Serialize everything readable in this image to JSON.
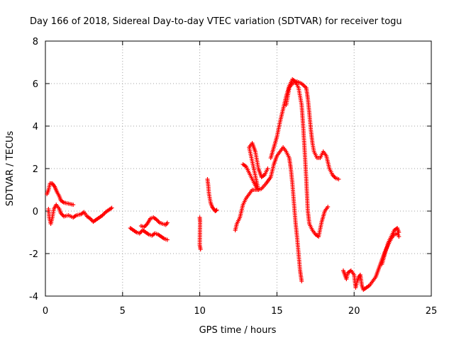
{
  "chart_data": {
    "type": "scatter",
    "title": "Day 166 of 2018, Sidereal Day-to-day VTEC variation (SDTVAR) for receiver togu",
    "xlabel": "GPS time / hours",
    "ylabel": "SDTVAR / TECUs",
    "xlim": [
      0,
      25
    ],
    "ylim": [
      -4,
      8
    ],
    "xticks": [
      0,
      5,
      10,
      15,
      20,
      25
    ],
    "yticks": [
      -4,
      -2,
      0,
      2,
      4,
      6,
      8
    ],
    "grid": true,
    "marker": "+",
    "color": "#ff0000",
    "series": [
      {
        "name": "SDTVAR",
        "segments": [
          [
            [
              0.1,
              0.8
            ],
            [
              0.2,
              1.0
            ],
            [
              0.3,
              1.3
            ],
            [
              0.45,
              1.3
            ],
            [
              0.6,
              1.15
            ],
            [
              0.75,
              0.9
            ],
            [
              0.9,
              0.7
            ],
            [
              1.0,
              0.5
            ],
            [
              1.2,
              0.4
            ],
            [
              1.5,
              0.35
            ],
            [
              1.8,
              0.3
            ]
          ],
          [
            [
              0.2,
              0.1
            ],
            [
              0.25,
              -0.3
            ],
            [
              0.35,
              -0.6
            ],
            [
              0.45,
              -0.3
            ],
            [
              0.55,
              0.1
            ],
            [
              0.7,
              0.3
            ],
            [
              0.9,
              0.1
            ],
            [
              1.0,
              -0.1
            ],
            [
              1.2,
              -0.25
            ],
            [
              1.5,
              -0.2
            ],
            [
              1.8,
              -0.3
            ],
            [
              2.0,
              -0.2
            ],
            [
              2.3,
              -0.15
            ],
            [
              2.5,
              -0.05
            ],
            [
              2.7,
              -0.25
            ],
            [
              2.9,
              -0.35
            ],
            [
              3.1,
              -0.5
            ],
            [
              3.3,
              -0.4
            ],
            [
              3.5,
              -0.3
            ],
            [
              3.7,
              -0.2
            ],
            [
              3.9,
              -0.05
            ],
            [
              4.1,
              0.05
            ],
            [
              4.3,
              0.15
            ]
          ],
          [
            [
              5.5,
              -0.8
            ],
            [
              5.7,
              -0.9
            ],
            [
              5.9,
              -1.0
            ],
            [
              6.1,
              -1.05
            ],
            [
              6.3,
              -0.9
            ],
            [
              6.5,
              -1.0
            ],
            [
              6.7,
              -1.1
            ],
            [
              6.9,
              -1.15
            ],
            [
              7.1,
              -1.05
            ],
            [
              7.3,
              -1.1
            ],
            [
              7.5,
              -1.2
            ],
            [
              7.7,
              -1.3
            ],
            [
              7.9,
              -1.35
            ]
          ],
          [
            [
              6.2,
              -0.7
            ],
            [
              6.4,
              -0.75
            ],
            [
              6.6,
              -0.6
            ],
            [
              6.8,
              -0.35
            ],
            [
              7.0,
              -0.3
            ],
            [
              7.2,
              -0.4
            ],
            [
              7.4,
              -0.55
            ],
            [
              7.6,
              -0.6
            ],
            [
              7.8,
              -0.65
            ],
            [
              7.9,
              -0.55
            ]
          ],
          [
            [
              10.0,
              -0.3
            ],
            [
              10.02,
              -0.5
            ],
            [
              10.0,
              -1.6
            ],
            [
              10.05,
              -1.8
            ]
          ],
          [
            [
              10.5,
              1.5
            ],
            [
              10.55,
              1.2
            ],
            [
              10.6,
              0.8
            ],
            [
              10.7,
              0.4
            ],
            [
              10.8,
              0.2
            ],
            [
              10.9,
              0.1
            ],
            [
              11.0,
              0.0
            ],
            [
              11.1,
              0.05
            ]
          ],
          [
            [
              12.3,
              -0.9
            ],
            [
              12.4,
              -0.6
            ],
            [
              12.6,
              -0.3
            ],
            [
              12.8,
              0.3
            ],
            [
              13.0,
              0.6
            ],
            [
              13.2,
              0.8
            ],
            [
              13.4,
              1.0
            ],
            [
              13.6,
              1.0
            ],
            [
              13.8,
              1.0
            ],
            [
              14.0,
              1.05
            ],
            [
              14.3,
              1.3
            ],
            [
              14.6,
              1.6
            ],
            [
              14.8,
              2.2
            ],
            [
              15.0,
              2.6
            ],
            [
              15.2,
              2.8
            ],
            [
              15.4,
              3.0
            ],
            [
              15.6,
              2.8
            ],
            [
              15.8,
              2.5
            ],
            [
              15.9,
              2.0
            ],
            [
              16.0,
              1.3
            ],
            [
              16.1,
              0.4
            ],
            [
              16.2,
              -0.5
            ],
            [
              16.3,
              -1.2
            ],
            [
              16.4,
              -2.0
            ],
            [
              16.5,
              -2.8
            ],
            [
              16.6,
              -3.3
            ]
          ],
          [
            [
              12.8,
              2.2
            ],
            [
              13.0,
              2.1
            ],
            [
              13.2,
              1.8
            ],
            [
              13.4,
              1.5
            ],
            [
              13.6,
              1.2
            ],
            [
              13.8,
              1.0
            ],
            [
              13.2,
              3.0
            ],
            [
              13.4,
              3.2
            ],
            [
              13.6,
              2.8
            ],
            [
              13.8,
              2.0
            ],
            [
              14.0,
              1.6
            ],
            [
              14.2,
              1.7
            ],
            [
              14.4,
              2.0
            ]
          ],
          [
            [
              14.6,
              2.5
            ],
            [
              14.8,
              3.0
            ],
            [
              15.0,
              3.5
            ],
            [
              15.2,
              4.2
            ],
            [
              15.4,
              4.8
            ],
            [
              15.6,
              5.4
            ],
            [
              15.8,
              5.9
            ],
            [
              16.0,
              6.2
            ],
            [
              16.2,
              6.1
            ],
            [
              16.4,
              5.8
            ],
            [
              16.6,
              5.0
            ],
            [
              16.7,
              4.0
            ],
            [
              16.8,
              2.8
            ],
            [
              16.9,
              1.5
            ],
            [
              17.0,
              0.0
            ],
            [
              17.1,
              -0.6
            ],
            [
              17.3,
              -0.9
            ],
            [
              17.5,
              -1.1
            ],
            [
              17.7,
              -1.2
            ],
            [
              17.9,
              -0.5
            ],
            [
              18.1,
              0.0
            ],
            [
              18.3,
              0.2
            ]
          ],
          [
            [
              15.6,
              5.0
            ],
            [
              15.8,
              5.8
            ],
            [
              16.0,
              6.0
            ],
            [
              16.3,
              6.1
            ],
            [
              16.6,
              6.0
            ],
            [
              16.9,
              5.8
            ],
            [
              17.0,
              5.3
            ],
            [
              17.1,
              4.6
            ],
            [
              17.2,
              3.8
            ],
            [
              17.3,
              3.2
            ],
            [
              17.4,
              2.8
            ],
            [
              17.6,
              2.5
            ],
            [
              17.8,
              2.5
            ],
            [
              18.0,
              2.8
            ],
            [
              18.2,
              2.6
            ],
            [
              18.4,
              2.0
            ],
            [
              18.6,
              1.7
            ],
            [
              18.8,
              1.55
            ],
            [
              19.0,
              1.5
            ]
          ],
          [
            [
              19.3,
              -2.8
            ],
            [
              19.5,
              -3.2
            ],
            [
              19.6,
              -2.9
            ],
            [
              19.8,
              -2.8
            ],
            [
              20.0,
              -3.0
            ],
            [
              20.1,
              -3.6
            ],
            [
              20.2,
              -3.3
            ],
            [
              20.3,
              -3.1
            ],
            [
              20.4,
              -3.0
            ],
            [
              20.5,
              -3.5
            ],
            [
              20.6,
              -3.7
            ],
            [
              20.8,
              -3.6
            ],
            [
              21.0,
              -3.5
            ],
            [
              21.2,
              -3.3
            ],
            [
              21.4,
              -3.1
            ],
            [
              21.6,
              -2.7
            ],
            [
              21.8,
              -2.3
            ],
            [
              22.0,
              -1.9
            ],
            [
              22.2,
              -1.6
            ],
            [
              22.4,
              -1.3
            ],
            [
              22.6,
              -1.1
            ],
            [
              22.8,
              -1.05
            ],
            [
              22.9,
              -1.2
            ]
          ],
          [
            [
              21.8,
              -2.5
            ],
            [
              22.0,
              -2.0
            ],
            [
              22.2,
              -1.5
            ],
            [
              22.4,
              -1.2
            ],
            [
              22.6,
              -0.9
            ],
            [
              22.8,
              -0.8
            ],
            [
              22.9,
              -1.0
            ]
          ]
        ]
      }
    ]
  }
}
